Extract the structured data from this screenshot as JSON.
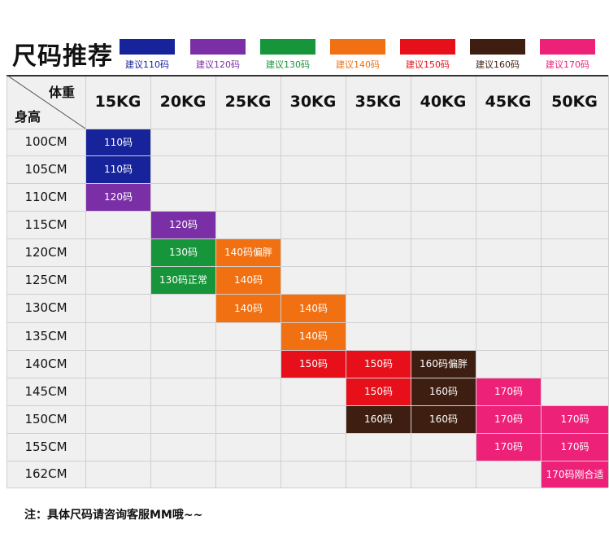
{
  "title": "尺码推荐",
  "legend": [
    {
      "label": "建议110码",
      "color": "#17239a"
    },
    {
      "label": "建议120码",
      "color": "#7a2fa6"
    },
    {
      "label": "建议130码",
      "color": "#16953b"
    },
    {
      "label": "建议140码",
      "color": "#f07012"
    },
    {
      "label": "建议150码",
      "color": "#e60f1a"
    },
    {
      "label": "建议160码",
      "color": "#3e1e10"
    },
    {
      "label": "建议170码",
      "color": "#ee2179"
    }
  ],
  "table": {
    "corner_weight": "体重",
    "corner_height": "身高",
    "weights": [
      "15KG",
      "20KG",
      "25KG",
      "30KG",
      "35KG",
      "40KG",
      "45KG",
      "50KG"
    ],
    "heights": [
      "100CM",
      "105CM",
      "110CM",
      "115CM",
      "120CM",
      "125CM",
      "130CM",
      "135CM",
      "140CM",
      "145CM",
      "150CM",
      "155CM",
      "162CM"
    ],
    "cells": [
      {
        "row": 0,
        "col": 0,
        "text": "110码",
        "color": "#17239a"
      },
      {
        "row": 1,
        "col": 0,
        "text": "110码",
        "color": "#17239a"
      },
      {
        "row": 2,
        "col": 0,
        "text": "120码",
        "color": "#7a2fa6"
      },
      {
        "row": 3,
        "col": 1,
        "text": "120码",
        "color": "#7a2fa6"
      },
      {
        "row": 4,
        "col": 1,
        "text": "130码",
        "color": "#16953b"
      },
      {
        "row": 4,
        "col": 2,
        "text": "140码偏胖",
        "color": "#f07012"
      },
      {
        "row": 5,
        "col": 1,
        "text": "130码正常",
        "color": "#16953b"
      },
      {
        "row": 5,
        "col": 2,
        "text": "140码",
        "color": "#f07012"
      },
      {
        "row": 6,
        "col": 2,
        "text": "140码",
        "color": "#f07012"
      },
      {
        "row": 6,
        "col": 3,
        "text": "140码",
        "color": "#f07012"
      },
      {
        "row": 7,
        "col": 3,
        "text": "140码",
        "color": "#f07012"
      },
      {
        "row": 8,
        "col": 3,
        "text": "150码",
        "color": "#e60f1a"
      },
      {
        "row": 8,
        "col": 4,
        "text": "150码",
        "color": "#e60f1a"
      },
      {
        "row": 8,
        "col": 5,
        "text": "160码偏胖",
        "color": "#3e1e10"
      },
      {
        "row": 9,
        "col": 4,
        "text": "150码",
        "color": "#e60f1a"
      },
      {
        "row": 9,
        "col": 5,
        "text": "160码",
        "color": "#3e1e10"
      },
      {
        "row": 9,
        "col": 6,
        "text": "170码",
        "color": "#ee2179"
      },
      {
        "row": 10,
        "col": 4,
        "text": "160码",
        "color": "#3e1e10"
      },
      {
        "row": 10,
        "col": 5,
        "text": "160码",
        "color": "#3e1e10"
      },
      {
        "row": 10,
        "col": 6,
        "text": "170码",
        "color": "#ee2179"
      },
      {
        "row": 10,
        "col": 7,
        "text": "170码",
        "color": "#ee2179"
      },
      {
        "row": 11,
        "col": 6,
        "text": "170码",
        "color": "#ee2179"
      },
      {
        "row": 11,
        "col": 7,
        "text": "170码",
        "color": "#ee2179"
      },
      {
        "row": 12,
        "col": 7,
        "text": "170码刚合适",
        "color": "#ee2179"
      }
    ]
  },
  "note": "注：具体尺码请咨询客服MM哦~~"
}
